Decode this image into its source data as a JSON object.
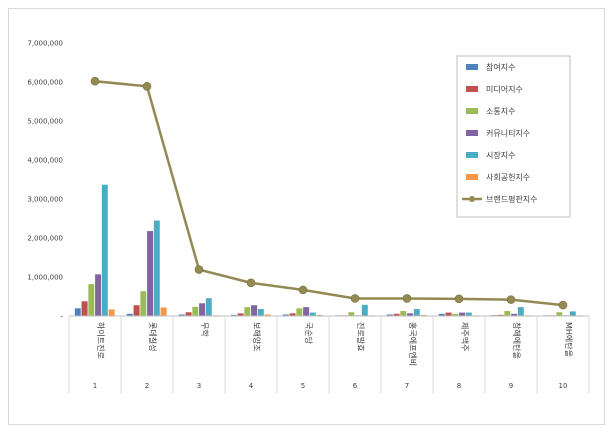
{
  "chart_data": {
    "type": "bar",
    "title": "",
    "xlabel": "",
    "ylabel": "",
    "ylim": [
      0,
      7000000
    ],
    "yticks": [
      "-",
      "1,000,000",
      "2,000,000",
      "3,000,000",
      "4,000,000",
      "5,000,000",
      "6,000,000",
      "7,000,000"
    ],
    "categories": [
      "하이트진로",
      "롯데칠성",
      "무학",
      "보해양조",
      "국순당",
      "진로발효",
      "홍국에프엔비",
      "제주맥주",
      "창해에탄올",
      "MH에탄올"
    ],
    "category_numbers": [
      "1",
      "2",
      "3",
      "4",
      "5",
      "6",
      "7",
      "8",
      "9",
      "10"
    ],
    "grid": false,
    "legend_position": "right",
    "series": [
      {
        "name": "참여지수",
        "color": "#4f81bd",
        "type": "bar",
        "values": [
          200000,
          60000,
          40000,
          30000,
          40000,
          15000,
          40000,
          60000,
          25000,
          10000
        ]
      },
      {
        "name": "미디어지수",
        "color": "#c0504d",
        "type": "bar",
        "values": [
          380000,
          280000,
          100000,
          70000,
          70000,
          20000,
          60000,
          90000,
          30000,
          20000
        ]
      },
      {
        "name": "소통지수",
        "color": "#9bbb59",
        "type": "bar",
        "values": [
          820000,
          640000,
          240000,
          230000,
          200000,
          100000,
          130000,
          60000,
          130000,
          100000
        ]
      },
      {
        "name": "커뮤니티지수",
        "color": "#8064a2",
        "type": "bar",
        "values": [
          1070000,
          2180000,
          330000,
          280000,
          230000,
          20000,
          70000,
          90000,
          60000,
          20000
        ]
      },
      {
        "name": "시장지수",
        "color": "#4bacc6",
        "type": "bar",
        "values": [
          3370000,
          2450000,
          460000,
          180000,
          90000,
          290000,
          180000,
          90000,
          230000,
          120000
        ]
      },
      {
        "name": "사회공헌지수",
        "color": "#f79646",
        "type": "bar",
        "values": [
          170000,
          220000,
          20000,
          40000,
          30000,
          10000,
          30000,
          20000,
          20000,
          10000
        ]
      },
      {
        "name": "브랜드평판지수",
        "color": "#938953",
        "type": "line",
        "values": [
          6020000,
          5890000,
          1190000,
          850000,
          670000,
          450000,
          450000,
          440000,
          420000,
          280000
        ]
      }
    ]
  }
}
